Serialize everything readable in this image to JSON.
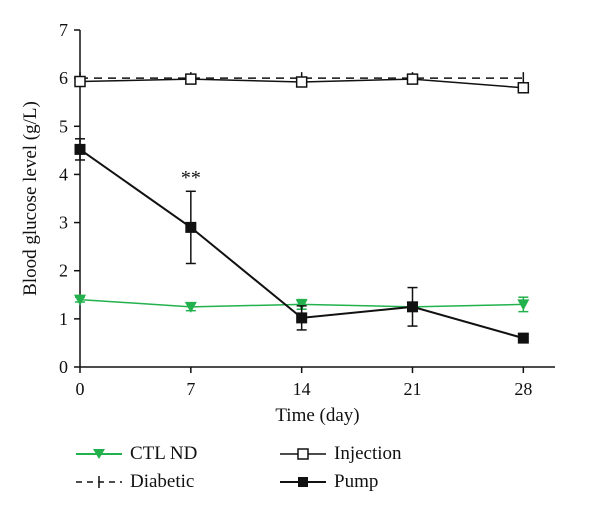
{
  "chart_data": {
    "type": "line",
    "xlabel": "Time (day)",
    "ylabel": "Blood glucose level (g/L)",
    "xlim": [
      0,
      30
    ],
    "ylim": [
      0,
      7
    ],
    "x_ticks": [
      0,
      7,
      14,
      21,
      28
    ],
    "y_ticks": [
      0,
      1,
      2,
      3,
      4,
      5,
      6,
      7
    ],
    "annotations": [
      {
        "text": "**",
        "x": 7,
        "y": 3.8
      }
    ],
    "series": [
      {
        "name": "CTL ND",
        "color": "#22b14c",
        "marker": "triangle-down",
        "line": "solid",
        "x": [
          0,
          7,
          14,
          21,
          28
        ],
        "y": [
          1.4,
          1.25,
          1.3,
          1.25,
          1.3
        ],
        "err": [
          0.05,
          0.08,
          0.1,
          0.05,
          0.15
        ]
      },
      {
        "name": "Diabetic",
        "color": "#111111",
        "marker": "plus",
        "line": "dashed",
        "x": [
          0,
          7,
          14,
          21,
          28
        ],
        "y": [
          6.0,
          6.0,
          6.0,
          6.0,
          6.0
        ],
        "err": [
          0,
          0,
          0,
          0,
          0
        ]
      },
      {
        "name": "Injection",
        "color": "#111111",
        "marker": "square-open",
        "line": "solid",
        "x": [
          0,
          7,
          14,
          21,
          28
        ],
        "y": [
          5.93,
          5.98,
          5.92,
          5.98,
          5.8
        ],
        "err": [
          0.05,
          0.05,
          0.05,
          0.05,
          0.07
        ]
      },
      {
        "name": "Pump",
        "color": "#111111",
        "marker": "square-filled",
        "line": "solid",
        "x": [
          0,
          7,
          14,
          21,
          28
        ],
        "y": [
          4.52,
          2.9,
          1.02,
          1.25,
          0.6
        ],
        "err": [
          0.22,
          0.75,
          0.25,
          0.4,
          0.03
        ]
      }
    ],
    "legend_position": "bottom",
    "grid": false
  }
}
